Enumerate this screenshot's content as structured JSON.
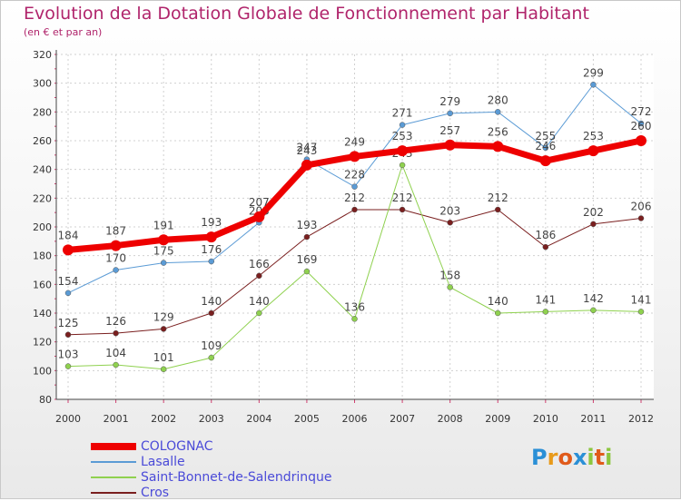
{
  "header": {
    "title": "Evolution de la Dotation Globale de Fonctionnement par Habitant",
    "subtitle": "(en € et par an)"
  },
  "logo": {
    "text": "Proxiti"
  },
  "chart_data": {
    "type": "line",
    "x": [
      "2000",
      "2001",
      "2002",
      "2003",
      "2004",
      "2005",
      "2006",
      "2007",
      "2008",
      "2009",
      "2010",
      "2011",
      "2012"
    ],
    "ylim": [
      80,
      320
    ],
    "yticks": [
      80,
      100,
      120,
      140,
      160,
      180,
      200,
      220,
      240,
      260,
      280,
      300,
      320
    ],
    "grid": true,
    "legend_position": "bottom-left",
    "series": [
      {
        "name": "Cros",
        "color": "#7a1f1f",
        "values": [
          125,
          126,
          129,
          140,
          166,
          193,
          212,
          212,
          203,
          212,
          186,
          202,
          206
        ]
      },
      {
        "name": "Saint-Bonnet-de-Salendrinque",
        "color": "#8fd14f",
        "values": [
          103,
          104,
          101,
          109,
          140,
          169,
          136,
          243,
          158,
          140,
          141,
          142,
          141
        ]
      },
      {
        "name": "Lasalle",
        "color": "#5b9bd5",
        "values": [
          154,
          170,
          175,
          176,
          203,
          247,
          228,
          271,
          279,
          280,
          255,
          299,
          272
        ]
      },
      {
        "name": "COLOGNAC",
        "color": "#ee0000",
        "values": [
          184,
          187,
          191,
          193,
          207,
          243,
          249,
          253,
          257,
          256,
          246,
          253,
          260
        ]
      }
    ]
  }
}
